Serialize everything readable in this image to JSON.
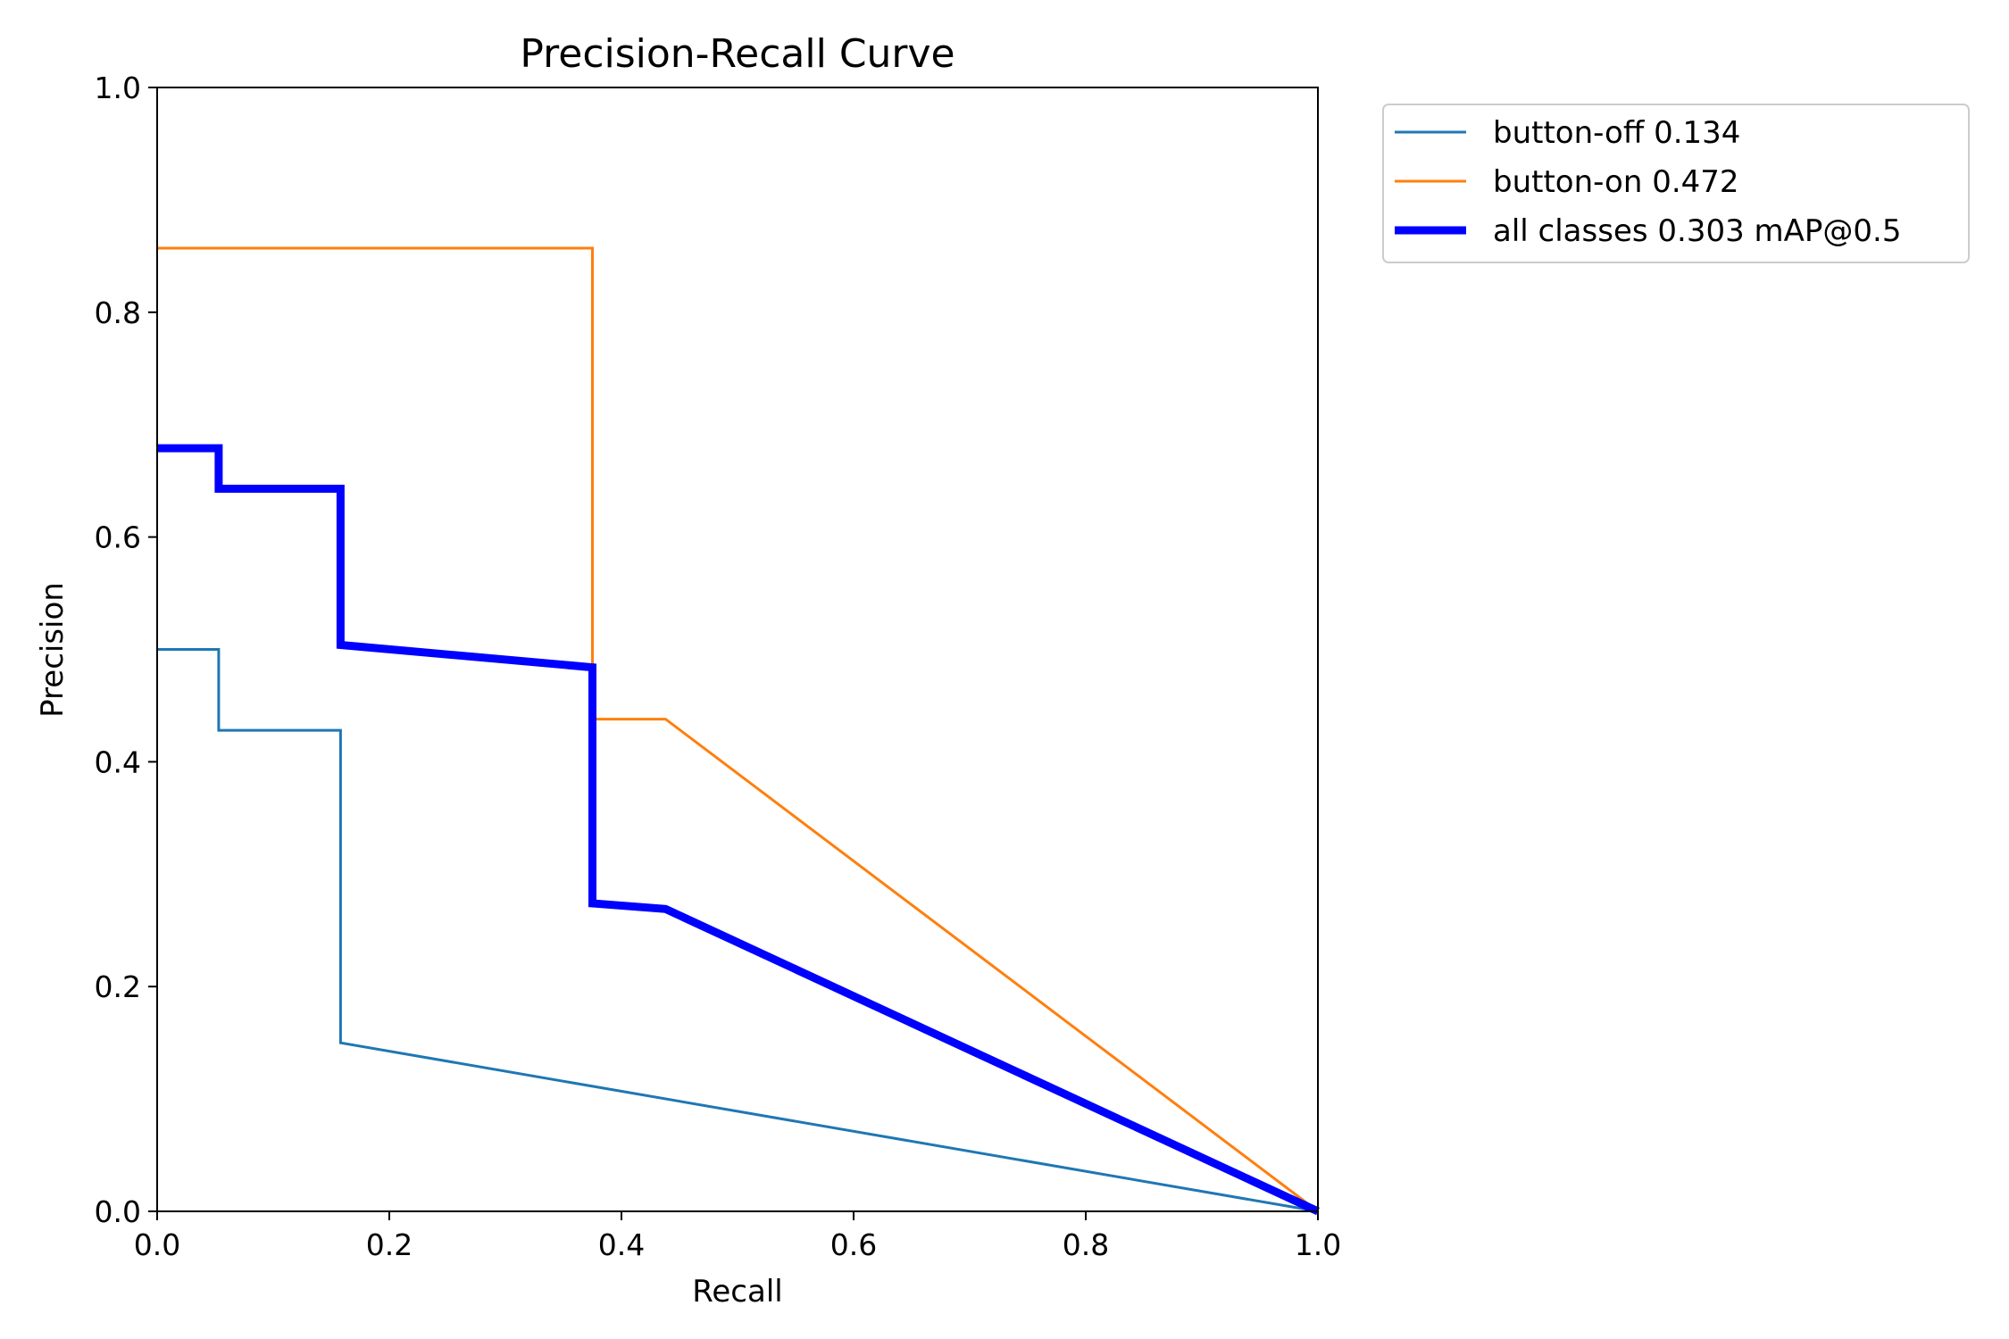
{
  "chart_data": {
    "type": "line",
    "title": "Precision-Recall Curve",
    "xlabel": "Recall",
    "ylabel": "Precision",
    "xlim": [
      0,
      1
    ],
    "ylim": [
      0,
      1
    ],
    "xticks": [
      "0.0",
      "0.2",
      "0.4",
      "0.6",
      "0.8",
      "1.0"
    ],
    "yticks": [
      "0.0",
      "0.2",
      "0.4",
      "0.6",
      "0.8",
      "1.0"
    ],
    "grid": false,
    "legend_placement": "outside-top-right",
    "series": [
      {
        "name": "button-off 0.134",
        "color": "#1f77b4",
        "emphasis": "normal",
        "x": [
          0,
          0.053,
          0.053,
          0.158,
          0.158,
          1.0
        ],
        "y": [
          0.5,
          0.5,
          0.428,
          0.428,
          0.15,
          0.0
        ]
      },
      {
        "name": "button-on 0.472",
        "color": "#ff7f0e",
        "emphasis": "normal",
        "x": [
          0,
          0.375,
          0.375,
          0.438,
          1.0
        ],
        "y": [
          0.857,
          0.857,
          0.438,
          0.438,
          0.0
        ]
      },
      {
        "name": "all classes 0.303 mAP@0.5",
        "color": "#0000ff",
        "emphasis": "bold",
        "x": [
          0,
          0.053,
          0.053,
          0.158,
          0.158,
          0.375,
          0.375,
          0.438,
          1.0
        ],
        "y": [
          0.679,
          0.679,
          0.643,
          0.643,
          0.504,
          0.484,
          0.274,
          0.269,
          0.0
        ]
      }
    ]
  }
}
